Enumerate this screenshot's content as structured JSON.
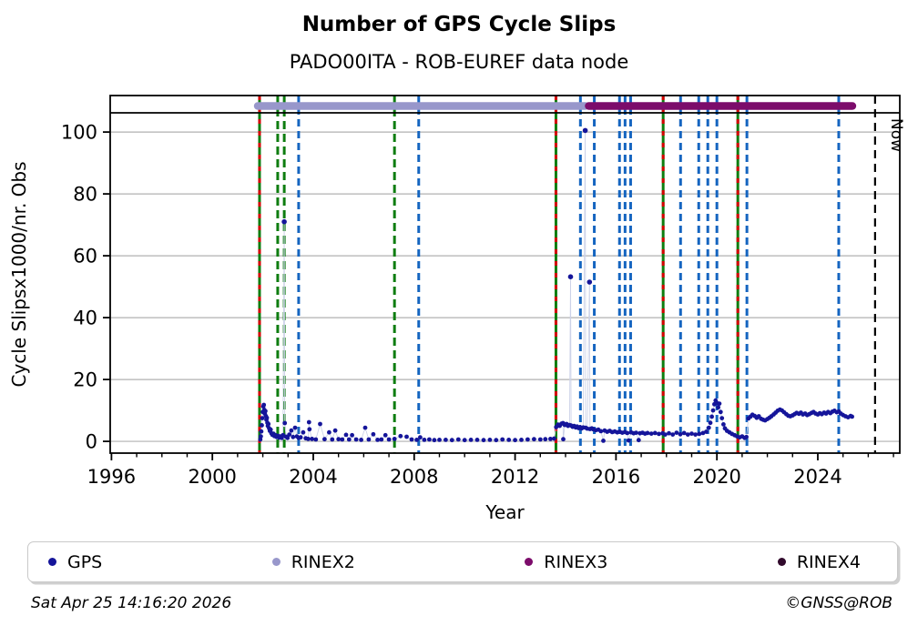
{
  "header": {
    "title": "Number of GPS Cycle Slips",
    "subtitle": "PADO00ITA - ROB-EUREF data node"
  },
  "footer": {
    "timestamp": "Sat Apr 25 14:16:20 2026",
    "credit": "©GNSS@ROB"
  },
  "legend": {
    "items": [
      {
        "label": "GPS",
        "color": "#15159a"
      },
      {
        "label": "RINEX2",
        "color": "#9897cb"
      },
      {
        "label": "RINEX3",
        "color": "#7c0c6b"
      },
      {
        "label": "RINEX4",
        "color": "#310a2c"
      }
    ]
  },
  "chart_data": {
    "type": "scatter",
    "title": "Number of GPS Cycle Slips",
    "subtitle": "PADO00ITA - ROB-EUREF data node",
    "xlabel": "Year",
    "ylabel": "Cycle Slipsx1000/nr. Obs",
    "xlim": [
      1995.95,
      2027.25
    ],
    "ylim": [
      -3.8,
      111.8
    ],
    "xticks": [
      1996,
      2000,
      2004,
      2008,
      2012,
      2016,
      2020,
      2024
    ],
    "minor_x_from": 1996,
    "minor_x_to": 2027,
    "yticks": [
      0,
      20,
      40,
      60,
      80,
      100
    ],
    "grid": "horizontal",
    "legend_position": "bottom",
    "colors": {
      "gps": "#15159a",
      "stem_line": "#ccd2e8",
      "grid": "#b0b0b0",
      "green_line": "#0e7d10",
      "red_overlay": "#d40000",
      "blue_line": "#1565c0",
      "now_line": "#000000",
      "rinex2": "#9897cb",
      "rinex3": "#7c0c6b",
      "rinex4": "#310a2c"
    },
    "bars": [
      {
        "name": "RINEX2",
        "start": 2001.8,
        "end": 2014.78,
        "color": "#9897cb"
      },
      {
        "name": "RINEX3",
        "start": 2014.92,
        "end": 2025.37,
        "color": "#7c0c6b"
      }
    ],
    "event_lines": {
      "green_solid_red_dashed": [
        2001.87,
        2013.62,
        2017.87,
        2020.83
      ],
      "green_dashed": [
        2002.59,
        2002.85,
        2007.22
      ],
      "blue_dashed": [
        2003.42,
        2008.18,
        2014.59,
        2015.14,
        2016.14,
        2016.36,
        2016.58,
        2018.56,
        2019.28,
        2019.64,
        2020.0,
        2021.19,
        2024.83
      ]
    },
    "now_line": {
      "year": 2026.27,
      "label": "Now"
    },
    "series": [
      {
        "name": "GPS",
        "color": "#15159a",
        "points": [
          [
            2001.9,
            0.6
          ],
          [
            2001.92,
            1.6
          ],
          [
            2001.94,
            3.2
          ],
          [
            2001.96,
            5.2
          ],
          [
            2001.98,
            7.5
          ],
          [
            2002.0,
            9.5
          ],
          [
            2002.02,
            11.3
          ],
          [
            2002.04,
            11.8
          ],
          [
            2002.06,
            10.2
          ],
          [
            2002.08,
            9.0
          ],
          [
            2002.1,
            9.8
          ],
          [
            2002.12,
            8.2
          ],
          [
            2002.14,
            7.0
          ],
          [
            2002.16,
            7.6
          ],
          [
            2002.18,
            6.0
          ],
          [
            2002.2,
            5.0
          ],
          [
            2002.22,
            5.6
          ],
          [
            2002.25,
            4.2
          ],
          [
            2002.28,
            3.4
          ],
          [
            2002.31,
            3.8
          ],
          [
            2002.34,
            2.6
          ],
          [
            2002.38,
            2.1
          ],
          [
            2002.42,
            2.5
          ],
          [
            2002.46,
            1.7
          ],
          [
            2002.5,
            2.0
          ],
          [
            2002.55,
            1.4
          ],
          [
            2002.6,
            1.8
          ],
          [
            2002.65,
            1.2
          ],
          [
            2002.7,
            1.6
          ],
          [
            2002.75,
            1.1
          ],
          [
            2002.8,
            2.0
          ],
          [
            2002.85,
            71.0
          ],
          [
            2002.87,
            5.9
          ],
          [
            2002.92,
            1.5
          ],
          [
            2002.98,
            1.1
          ],
          [
            2003.05,
            2.2
          ],
          [
            2003.13,
            3.5
          ],
          [
            2003.2,
            1.4
          ],
          [
            2003.28,
            4.4
          ],
          [
            2003.35,
            1.6
          ],
          [
            2003.42,
            1.1
          ],
          [
            2003.5,
            1.3
          ],
          [
            2003.6,
            2.9
          ],
          [
            2003.7,
            1.0
          ],
          [
            2003.8,
            0.8
          ],
          [
            2003.83,
            6.2
          ],
          [
            2003.85,
            3.9
          ],
          [
            2003.95,
            0.8
          ],
          [
            2004.1,
            0.6
          ],
          [
            2004.27,
            5.6
          ],
          [
            2004.45,
            0.7
          ],
          [
            2004.63,
            2.9
          ],
          [
            2004.75,
            0.6
          ],
          [
            2004.87,
            3.5
          ],
          [
            2005.0,
            0.7
          ],
          [
            2005.15,
            0.6
          ],
          [
            2005.3,
            2.1
          ],
          [
            2005.42,
            0.6
          ],
          [
            2005.54,
            2.0
          ],
          [
            2005.7,
            0.6
          ],
          [
            2005.9,
            0.5
          ],
          [
            2006.06,
            4.4
          ],
          [
            2006.2,
            0.6
          ],
          [
            2006.38,
            2.3
          ],
          [
            2006.55,
            0.5
          ],
          [
            2006.7,
            0.6
          ],
          [
            2006.86,
            2.0
          ],
          [
            2007.0,
            0.6
          ],
          [
            2007.22,
            0.8
          ],
          [
            2007.46,
            1.7
          ],
          [
            2007.7,
            1.5
          ],
          [
            2007.9,
            0.6
          ],
          [
            2008.1,
            0.5
          ],
          [
            2008.24,
            1.3
          ],
          [
            2008.4,
            0.5
          ],
          [
            2008.6,
            0.6
          ],
          [
            2008.8,
            0.4
          ],
          [
            2009.0,
            0.5
          ],
          [
            2009.25,
            0.5
          ],
          [
            2009.5,
            0.4
          ],
          [
            2009.75,
            0.6
          ],
          [
            2010.0,
            0.4
          ],
          [
            2010.25,
            0.5
          ],
          [
            2010.5,
            0.5
          ],
          [
            2010.75,
            0.4
          ],
          [
            2011.0,
            0.5
          ],
          [
            2011.25,
            0.4
          ],
          [
            2011.5,
            0.6
          ],
          [
            2011.75,
            0.5
          ],
          [
            2012.0,
            0.4
          ],
          [
            2012.25,
            0.5
          ],
          [
            2012.5,
            0.6
          ],
          [
            2012.75,
            0.7
          ],
          [
            2013.0,
            0.6
          ],
          [
            2013.2,
            0.7
          ],
          [
            2013.4,
            0.8
          ],
          [
            2013.55,
            0.9
          ],
          [
            2013.63,
            4.6
          ],
          [
            2013.7,
            5.4
          ],
          [
            2013.77,
            5.0
          ],
          [
            2013.84,
            5.7
          ],
          [
            2013.9,
            5.9
          ],
          [
            2013.91,
            0.7
          ],
          [
            2013.97,
            5.3
          ],
          [
            2014.04,
            5.6
          ],
          [
            2014.1,
            5.0
          ],
          [
            2014.16,
            5.3
          ],
          [
            2014.2,
            53.2
          ],
          [
            2014.22,
            5.1
          ],
          [
            2014.28,
            4.7
          ],
          [
            2014.34,
            5.0
          ],
          [
            2014.4,
            4.5
          ],
          [
            2014.46,
            4.8
          ],
          [
            2014.52,
            4.3
          ],
          [
            2014.58,
            4.6
          ],
          [
            2014.64,
            4.2
          ],
          [
            2014.7,
            4.5
          ],
          [
            2014.78,
            100.5
          ],
          [
            2014.8,
            4.4
          ],
          [
            2014.86,
            4.1
          ],
          [
            2014.95,
            51.5
          ],
          [
            2014.97,
            4.0
          ],
          [
            2015.04,
            4.2
          ],
          [
            2015.1,
            3.9
          ],
          [
            2015.2,
            3.6
          ],
          [
            2015.3,
            3.8
          ],
          [
            2015.4,
            3.3
          ],
          [
            2015.5,
            0.2
          ],
          [
            2015.55,
            3.5
          ],
          [
            2015.65,
            3.1
          ],
          [
            2015.75,
            3.4
          ],
          [
            2015.85,
            3.0
          ],
          [
            2015.95,
            3.2
          ],
          [
            2016.05,
            2.9
          ],
          [
            2016.15,
            3.1
          ],
          [
            2016.25,
            2.8
          ],
          [
            2016.35,
            3.0
          ],
          [
            2016.45,
            2.7
          ],
          [
            2016.5,
            0.3
          ],
          [
            2016.6,
            2.9
          ],
          [
            2016.7,
            2.6
          ],
          [
            2016.8,
            2.8
          ],
          [
            2016.9,
            0.4
          ],
          [
            2016.95,
            2.6
          ],
          [
            2017.05,
            2.8
          ],
          [
            2017.15,
            2.5
          ],
          [
            2017.25,
            2.7
          ],
          [
            2017.4,
            2.5
          ],
          [
            2017.55,
            2.7
          ],
          [
            2017.7,
            2.4
          ],
          [
            2017.85,
            2.6
          ],
          [
            2017.95,
            2.2
          ],
          [
            2018.1,
            2.6
          ],
          [
            2018.25,
            2.2
          ],
          [
            2018.4,
            2.8
          ],
          [
            2018.55,
            2.3
          ],
          [
            2018.7,
            2.7
          ],
          [
            2018.85,
            2.2
          ],
          [
            2019.0,
            2.5
          ],
          [
            2019.15,
            2.2
          ],
          [
            2019.3,
            2.4
          ],
          [
            2019.45,
            2.7
          ],
          [
            2019.58,
            3.1
          ],
          [
            2019.68,
            4.4
          ],
          [
            2019.74,
            6.0
          ],
          [
            2019.8,
            8.0
          ],
          [
            2019.85,
            10.0
          ],
          [
            2019.9,
            12.0
          ],
          [
            2019.95,
            13.2
          ],
          [
            2020.0,
            12.4
          ],
          [
            2020.05,
            11.0
          ],
          [
            2020.1,
            12.2
          ],
          [
            2020.15,
            9.5
          ],
          [
            2020.2,
            7.5
          ],
          [
            2020.26,
            5.5
          ],
          [
            2020.32,
            4.2
          ],
          [
            2020.4,
            3.4
          ],
          [
            2020.5,
            2.9
          ],
          [
            2020.6,
            2.4
          ],
          [
            2020.7,
            2.0
          ],
          [
            2020.8,
            1.6
          ],
          [
            2020.9,
            1.3
          ],
          [
            2021.0,
            1.6
          ],
          [
            2021.1,
            1.1
          ],
          [
            2021.17,
            1.4
          ],
          [
            2021.25,
            7.4
          ],
          [
            2021.33,
            8.0
          ],
          [
            2021.41,
            8.6
          ],
          [
            2021.5,
            8.2
          ],
          [
            2021.58,
            7.6
          ],
          [
            2021.66,
            8.1
          ],
          [
            2021.75,
            7.3
          ],
          [
            2021.83,
            7.0
          ],
          [
            2021.91,
            6.8
          ],
          [
            2022.0,
            7.2
          ],
          [
            2022.08,
            7.6
          ],
          [
            2022.16,
            8.1
          ],
          [
            2022.25,
            8.7
          ],
          [
            2022.33,
            9.3
          ],
          [
            2022.41,
            9.9
          ],
          [
            2022.5,
            10.3
          ],
          [
            2022.58,
            10.0
          ],
          [
            2022.66,
            9.4
          ],
          [
            2022.75,
            8.8
          ],
          [
            2022.83,
            8.3
          ],
          [
            2022.91,
            8.1
          ],
          [
            2023.0,
            8.4
          ],
          [
            2023.08,
            8.8
          ],
          [
            2023.16,
            9.2
          ],
          [
            2023.25,
            8.9
          ],
          [
            2023.33,
            9.3
          ],
          [
            2023.41,
            8.7
          ],
          [
            2023.5,
            9.0
          ],
          [
            2023.58,
            8.5
          ],
          [
            2023.66,
            8.8
          ],
          [
            2023.75,
            9.2
          ],
          [
            2023.83,
            9.5
          ],
          [
            2023.91,
            9.0
          ],
          [
            2024.0,
            8.7
          ],
          [
            2024.08,
            9.1
          ],
          [
            2024.16,
            8.8
          ],
          [
            2024.25,
            9.3
          ],
          [
            2024.33,
            9.0
          ],
          [
            2024.41,
            9.5
          ],
          [
            2024.5,
            9.1
          ],
          [
            2024.58,
            9.6
          ],
          [
            2024.66,
            9.9
          ],
          [
            2024.75,
            9.4
          ],
          [
            2024.83,
            9.7
          ],
          [
            2024.91,
            9.0
          ],
          [
            2025.0,
            8.5
          ],
          [
            2025.1,
            8.1
          ],
          [
            2025.2,
            7.8
          ],
          [
            2025.3,
            8.2
          ],
          [
            2025.36,
            8.0
          ]
        ]
      }
    ]
  }
}
